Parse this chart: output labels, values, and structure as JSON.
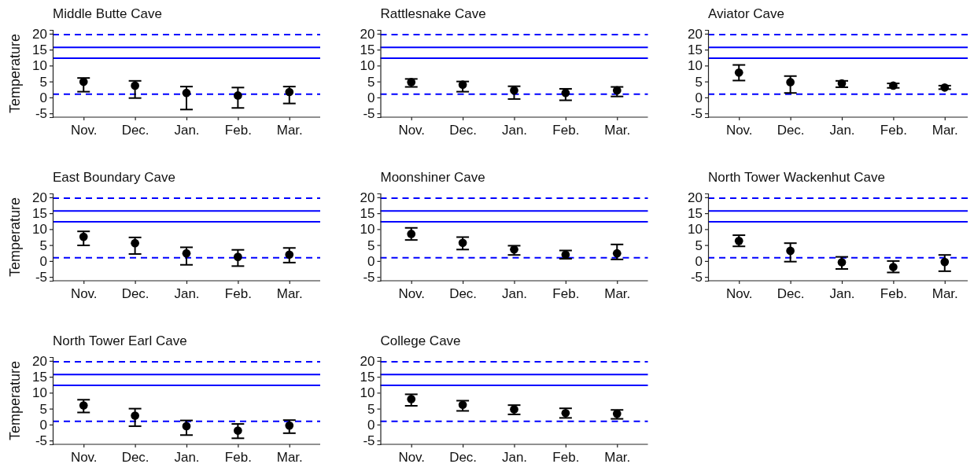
{
  "chart_data": [
    {
      "type": "scatter",
      "title": "Middle Butte Cave",
      "ylabel": "Temperature",
      "categories": [
        "Nov.",
        "Dec.",
        "Jan.",
        "Feb.",
        "Mar."
      ],
      "values": [
        4.9,
        3.7,
        1.4,
        0.6,
        1.7
      ],
      "errors": [
        [
          1.8,
          6.1
        ],
        [
          -0.2,
          5.2
        ],
        [
          -3.8,
          3.4
        ],
        [
          -3.3,
          3.1
        ],
        [
          -1.9,
          3.4
        ]
      ],
      "color": "#000000",
      "marker": "circle",
      "ylim": [
        -6.2,
        21.2
      ],
      "yticks": [
        -5,
        0,
        5,
        10,
        15,
        20
      ],
      "ref_lines": [
        {
          "axis": "y",
          "value": 19.7,
          "color": "#0000ff",
          "line_style": "dashed"
        },
        {
          "axis": "y",
          "value": 15.7,
          "color": "#0000ff",
          "line_style": "solid"
        },
        {
          "axis": "y",
          "value": 12.3,
          "color": "#0000ff",
          "line_style": "solid"
        },
        {
          "axis": "y",
          "value": 1,
          "color": "#0000ff",
          "line_style": "dashed"
        }
      ]
    },
    {
      "type": "scatter",
      "title": "Rattlesnake Cave",
      "categories": [
        "Nov.",
        "Dec.",
        "Jan.",
        "Feb.",
        "Mar."
      ],
      "values": [
        4.8,
        4.0,
        2.2,
        1.4,
        2.2
      ],
      "errors": [
        [
          3.3,
          5.8
        ],
        [
          1.8,
          5.0
        ],
        [
          -0.5,
          3.5
        ],
        [
          -0.9,
          2.7
        ],
        [
          0.3,
          3.3
        ]
      ],
      "color": "#000000",
      "marker": "circle",
      "ylim": [
        -6.2,
        21.2
      ],
      "yticks": [
        -5,
        0,
        5,
        10,
        15,
        20
      ],
      "ref_lines": [
        {
          "axis": "y",
          "value": 19.7,
          "color": "#0000ff",
          "line_style": "dashed"
        },
        {
          "axis": "y",
          "value": 15.7,
          "color": "#0000ff",
          "line_style": "solid"
        },
        {
          "axis": "y",
          "value": 12.3,
          "color": "#0000ff",
          "line_style": "solid"
        },
        {
          "axis": "y",
          "value": 1,
          "color": "#0000ff",
          "line_style": "dashed"
        }
      ]
    },
    {
      "type": "scatter",
      "title": "Aviator Cave",
      "categories": [
        "Nov.",
        "Dec.",
        "Jan.",
        "Feb.",
        "Mar."
      ],
      "values": [
        7.8,
        4.8,
        4.4,
        3.7,
        3.1
      ],
      "errors": [
        [
          5.3,
          10.2
        ],
        [
          1.4,
          6.7
        ],
        [
          3.2,
          5.2
        ],
        [
          3.0,
          4.4
        ],
        [
          2.6,
          3.7
        ]
      ],
      "color": "#000000",
      "marker": "circle",
      "ylim": [
        -6.2,
        21.2
      ],
      "yticks": [
        -5,
        0,
        5,
        10,
        15,
        20
      ],
      "ref_lines": [
        {
          "axis": "y",
          "value": 19.7,
          "color": "#0000ff",
          "line_style": "dashed"
        },
        {
          "axis": "y",
          "value": 15.7,
          "color": "#0000ff",
          "line_style": "solid"
        },
        {
          "axis": "y",
          "value": 12.3,
          "color": "#0000ff",
          "line_style": "solid"
        },
        {
          "axis": "y",
          "value": 1,
          "color": "#0000ff",
          "line_style": "dashed"
        }
      ]
    },
    {
      "type": "scatter",
      "title": "East Boundary Cave",
      "ylabel": "Temperature",
      "categories": [
        "Nov.",
        "Dec.",
        "Jan.",
        "Feb.",
        "Mar."
      ],
      "values": [
        7.6,
        5.6,
        2.4,
        1.3,
        2.0
      ],
      "errors": [
        [
          4.9,
          9.3
        ],
        [
          2.2,
          7.4
        ],
        [
          -1.2,
          4.3
        ],
        [
          -1.6,
          3.5
        ],
        [
          -0.5,
          4.1
        ]
      ],
      "color": "#000000",
      "marker": "circle",
      "ylim": [
        -6.2,
        21.2
      ],
      "yticks": [
        -5,
        0,
        5,
        10,
        15,
        20
      ],
      "ref_lines": [
        {
          "axis": "y",
          "value": 19.7,
          "color": "#0000ff",
          "line_style": "dashed"
        },
        {
          "axis": "y",
          "value": 15.7,
          "color": "#0000ff",
          "line_style": "solid"
        },
        {
          "axis": "y",
          "value": 12.3,
          "color": "#0000ff",
          "line_style": "solid"
        },
        {
          "axis": "y",
          "value": 1,
          "color": "#0000ff",
          "line_style": "dashed"
        }
      ]
    },
    {
      "type": "scatter",
      "title": "Moonshiner Cave",
      "categories": [
        "Nov.",
        "Dec.",
        "Jan.",
        "Feb.",
        "Mar."
      ],
      "values": [
        8.5,
        5.7,
        3.6,
        2.0,
        2.4
      ],
      "errors": [
        [
          6.6,
          10.4
        ],
        [
          3.6,
          7.5
        ],
        [
          1.9,
          4.8
        ],
        [
          0.7,
          3.3
        ],
        [
          0.5,
          5.2
        ]
      ],
      "color": "#000000",
      "marker": "circle",
      "ylim": [
        -6.2,
        21.2
      ],
      "yticks": [
        -5,
        0,
        5,
        10,
        15,
        20
      ],
      "ref_lines": [
        {
          "axis": "y",
          "value": 19.7,
          "color": "#0000ff",
          "line_style": "dashed"
        },
        {
          "axis": "y",
          "value": 15.7,
          "color": "#0000ff",
          "line_style": "solid"
        },
        {
          "axis": "y",
          "value": 12.3,
          "color": "#0000ff",
          "line_style": "solid"
        },
        {
          "axis": "y",
          "value": 1,
          "color": "#0000ff",
          "line_style": "dashed"
        }
      ]
    },
    {
      "type": "scatter",
      "title": "North Tower Wackenhut Cave",
      "categories": [
        "Nov.",
        "Dec.",
        "Jan.",
        "Feb.",
        "Mar."
      ],
      "values": [
        6.3,
        3.2,
        -0.4,
        -1.9,
        -0.3
      ],
      "errors": [
        [
          4.6,
          8.1
        ],
        [
          -0.2,
          5.6
        ],
        [
          -2.5,
          1.3
        ],
        [
          -3.6,
          0
        ],
        [
          -3.2,
          1.9
        ]
      ],
      "color": "#000000",
      "marker": "circle",
      "ylim": [
        -6.2,
        21.2
      ],
      "yticks": [
        -5,
        0,
        5,
        10,
        15,
        20
      ],
      "ref_lines": [
        {
          "axis": "y",
          "value": 19.7,
          "color": "#0000ff",
          "line_style": "dashed"
        },
        {
          "axis": "y",
          "value": 15.7,
          "color": "#0000ff",
          "line_style": "solid"
        },
        {
          "axis": "y",
          "value": 12.3,
          "color": "#0000ff",
          "line_style": "solid"
        },
        {
          "axis": "y",
          "value": 1,
          "color": "#0000ff",
          "line_style": "dashed"
        }
      ]
    },
    {
      "type": "scatter",
      "title": "North Tower Earl Cave",
      "ylabel": "Temperature",
      "categories": [
        "Nov.",
        "Dec.",
        "Jan.",
        "Feb.",
        "Mar."
      ],
      "values": [
        6.0,
        2.8,
        -0.5,
        -1.9,
        -0.3
      ],
      "errors": [
        [
          3.8,
          7.8
        ],
        [
          -0.5,
          5.0
        ],
        [
          -3.3,
          1.3
        ],
        [
          -4.3,
          0.2
        ],
        [
          -2.7,
          1.4
        ]
      ],
      "color": "#000000",
      "marker": "circle",
      "ylim": [
        -6.2,
        21.2
      ],
      "yticks": [
        -5,
        0,
        5,
        10,
        15,
        20
      ],
      "ref_lines": [
        {
          "axis": "y",
          "value": 19.7,
          "color": "#0000ff",
          "line_style": "dashed"
        },
        {
          "axis": "y",
          "value": 15.7,
          "color": "#0000ff",
          "line_style": "solid"
        },
        {
          "axis": "y",
          "value": 12.3,
          "color": "#0000ff",
          "line_style": "solid"
        },
        {
          "axis": "y",
          "value": 1,
          "color": "#0000ff",
          "line_style": "dashed"
        }
      ]
    },
    {
      "type": "scatter",
      "title": "College Cave",
      "categories": [
        "Nov.",
        "Dec.",
        "Jan.",
        "Feb.",
        "Mar."
      ],
      "values": [
        8.0,
        6.2,
        4.8,
        3.6,
        3.4
      ],
      "errors": [
        [
          5.9,
          9.5
        ],
        [
          4.3,
          7.5
        ],
        [
          3.2,
          6.1
        ],
        [
          2.1,
          5.1
        ],
        [
          1.8,
          4.6
        ]
      ],
      "color": "#000000",
      "marker": "circle",
      "ylim": [
        -6.2,
        21.2
      ],
      "yticks": [
        -5,
        0,
        5,
        10,
        15,
        20
      ],
      "ref_lines": [
        {
          "axis": "y",
          "value": 19.7,
          "color": "#0000ff",
          "line_style": "dashed"
        },
        {
          "axis": "y",
          "value": 15.7,
          "color": "#0000ff",
          "line_style": "solid"
        },
        {
          "axis": "y",
          "value": 12.3,
          "color": "#0000ff",
          "line_style": "solid"
        },
        {
          "axis": "y",
          "value": 1,
          "color": "#0000ff",
          "line_style": "dashed"
        }
      ]
    }
  ]
}
